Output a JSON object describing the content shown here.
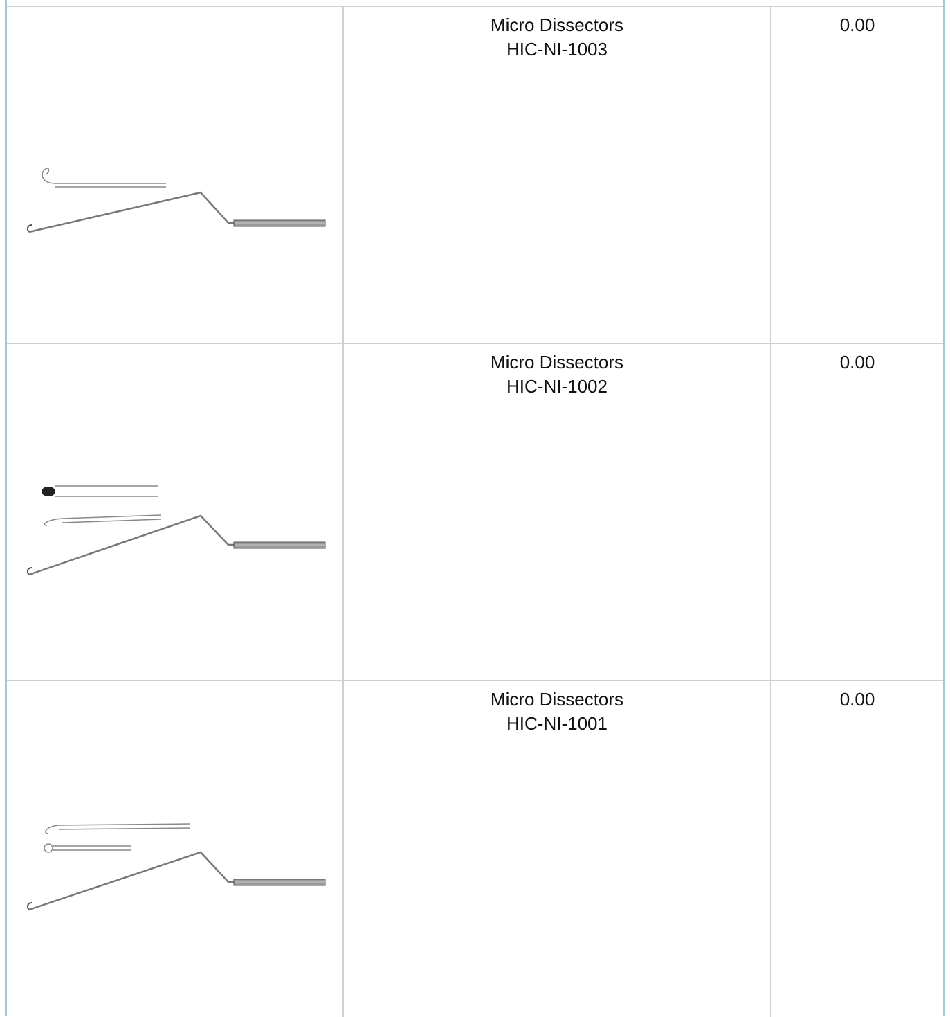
{
  "table": {
    "rows": [
      {
        "name": "Micro Dissectors",
        "code": "HIC-NI-1003",
        "price": "0.00"
      },
      {
        "name": "Micro Dissectors",
        "code": "HIC-NI-1002",
        "price": "0.00"
      },
      {
        "name": "Micro Dissectors",
        "code": "HIC-NI-1001",
        "price": "0.00"
      }
    ]
  }
}
